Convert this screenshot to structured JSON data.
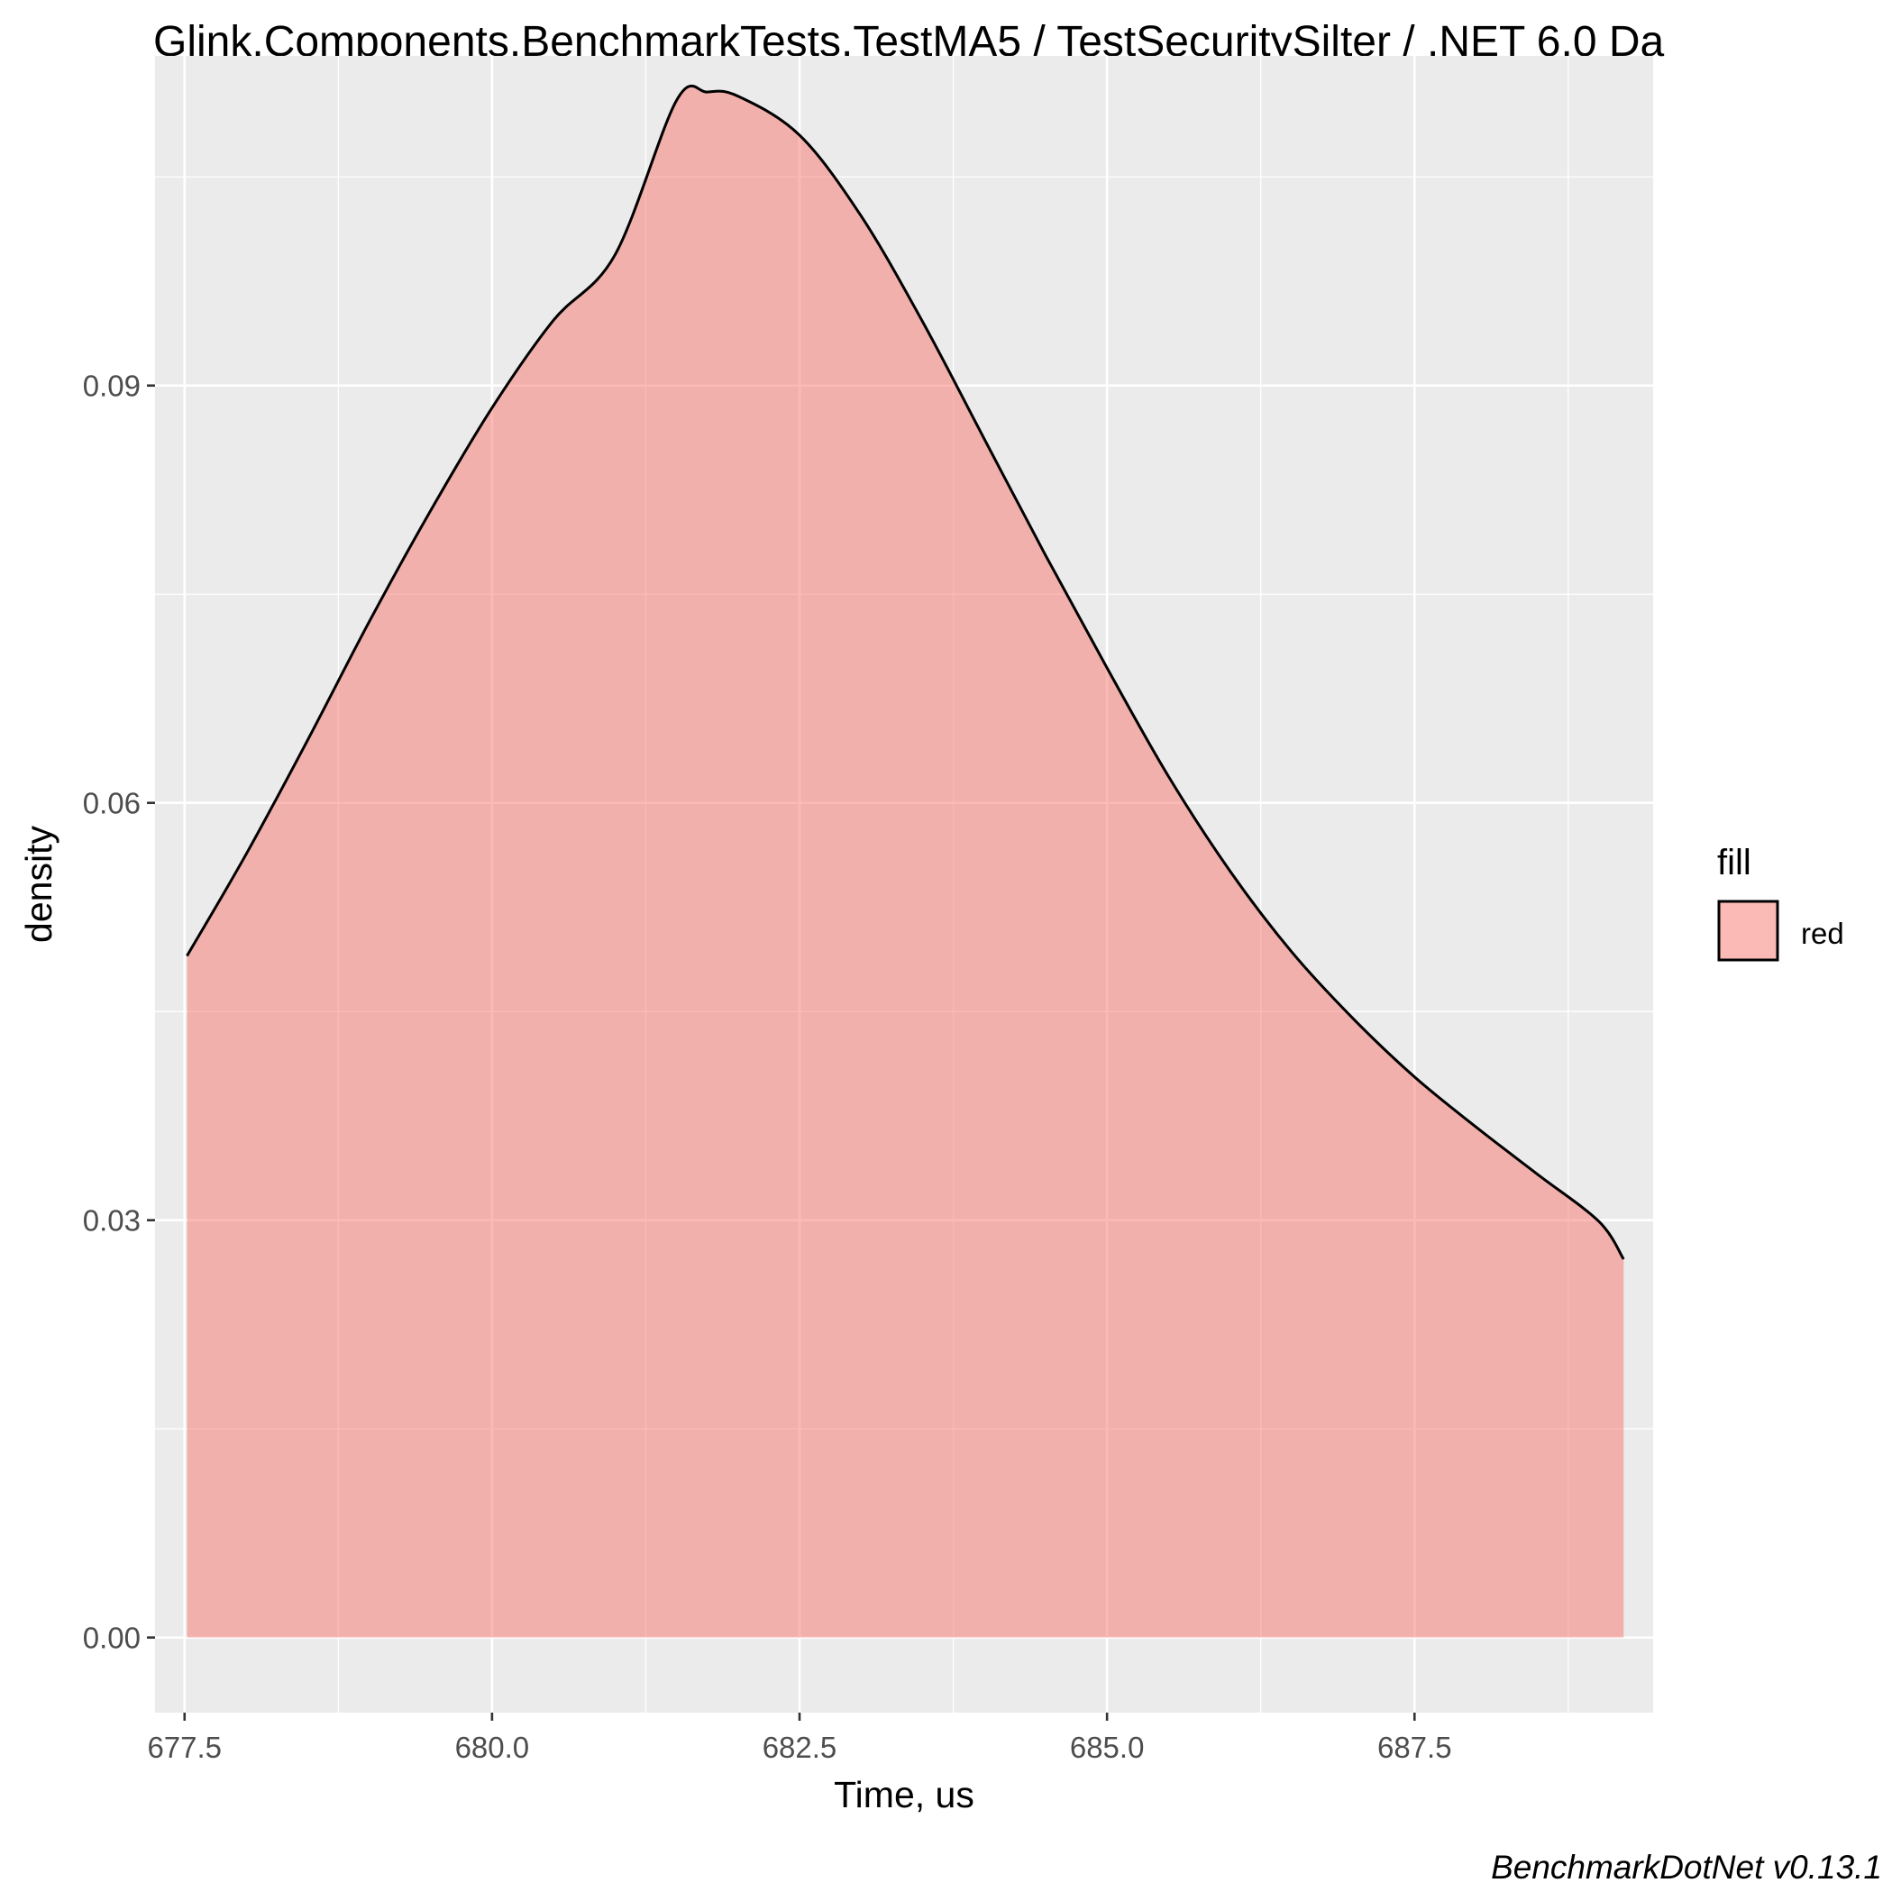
{
  "chart_data": {
    "type": "area",
    "title": "Glink.Components.BenchmarkTests.TestMA5 / TestSecuritySilter / .NET 6.0 Da",
    "xlabel": "Time, us",
    "ylabel": "density",
    "caption": "BenchmarkDotNet v0.13.1",
    "xlim": [
      677.26,
      689.44
    ],
    "ylim": [
      -0.0054,
      0.1137
    ],
    "x_ticks": [
      677.5,
      680.0,
      682.5,
      685.0,
      687.5
    ],
    "x_tick_labels": [
      "677.5",
      "680.0",
      "682.5",
      "685.0",
      "687.5"
    ],
    "y_ticks": [
      0.0,
      0.03,
      0.06,
      0.09
    ],
    "y_tick_labels": [
      "0.00",
      "0.03",
      "0.06",
      "0.09"
    ],
    "grid": true,
    "legend": {
      "title": "fill",
      "position": "right",
      "entries": [
        {
          "label": "red",
          "color": "#F8766D"
        }
      ]
    },
    "series": [
      {
        "name": "red",
        "fill_color": "#F8766D",
        "fill_opacity": 0.5,
        "line_color": "#000000",
        "x": [
          677.52,
          678.0,
          678.5,
          679.0,
          679.5,
          680.0,
          680.5,
          681.0,
          681.5,
          681.75,
          682.0,
          682.5,
          683.0,
          683.5,
          684.0,
          684.5,
          685.0,
          685.5,
          686.0,
          686.5,
          687.0,
          687.5,
          688.0,
          688.5,
          689.0,
          689.2
        ],
        "y": [
          0.049,
          0.0563,
          0.0645,
          0.073,
          0.081,
          0.0884,
          0.0947,
          0.0994,
          0.1105,
          0.1111,
          0.1108,
          0.108,
          0.1022,
          0.0946,
          0.0862,
          0.0778,
          0.0697,
          0.0619,
          0.0551,
          0.0493,
          0.0445,
          0.0403,
          0.0367,
          0.0333,
          0.0299,
          0.0272
        ]
      }
    ]
  }
}
